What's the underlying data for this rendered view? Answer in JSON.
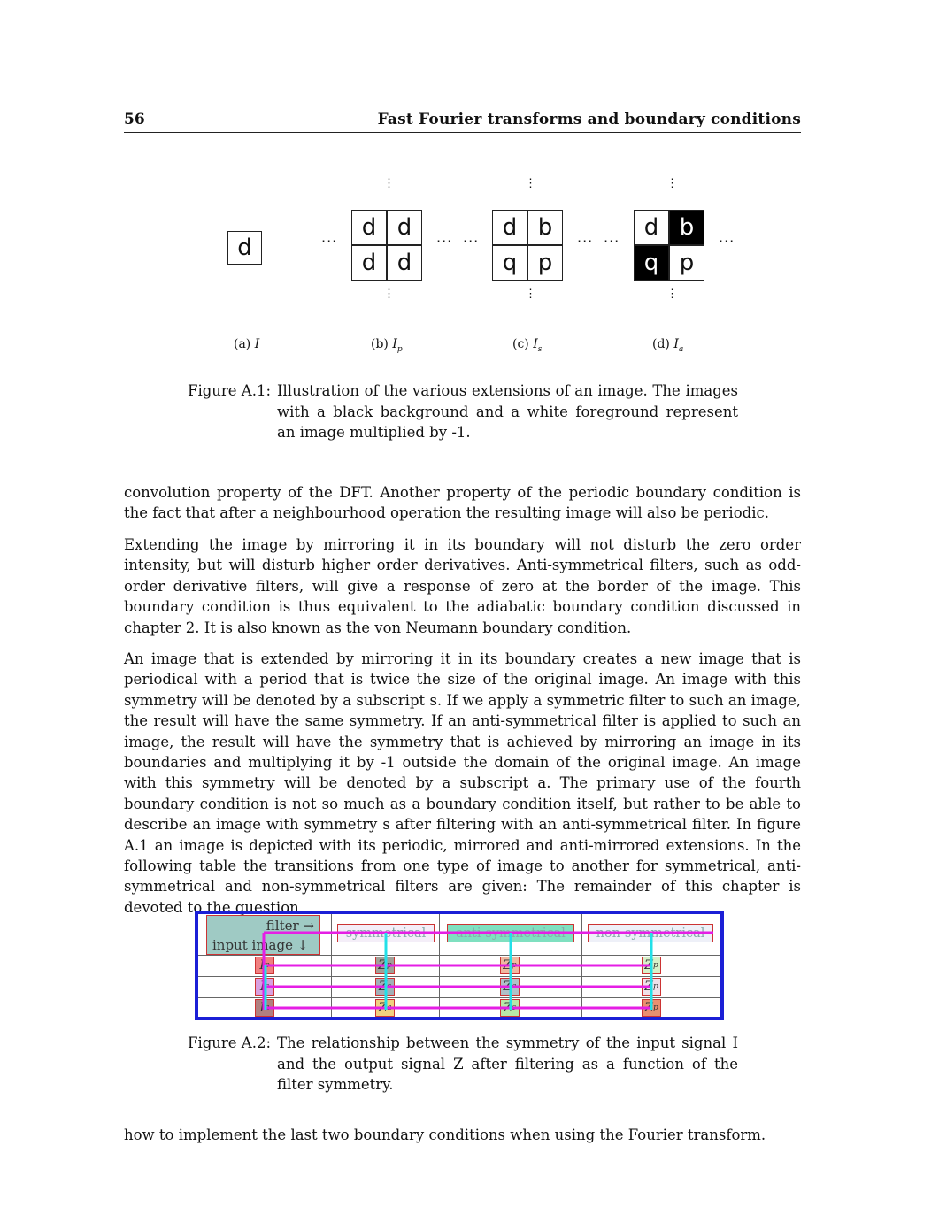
{
  "header": {
    "page_number": "56",
    "running_title": "Fast Fourier transforms and boundary conditions"
  },
  "figure_a1": {
    "subfigures": [
      {
        "label": "(a)",
        "symbol": "I",
        "subscript": "",
        "cells": [
          "d"
        ]
      },
      {
        "label": "(b)",
        "symbol": "I",
        "subscript": "p",
        "cells": [
          "d",
          "d",
          "d",
          "d"
        ]
      },
      {
        "label": "(c)",
        "symbol": "I",
        "subscript": "s",
        "cells": [
          "d",
          "b",
          "q",
          "p"
        ]
      },
      {
        "label": "(d)",
        "symbol": "I",
        "subscript": "a",
        "cells": [
          "d",
          "b",
          "q",
          "p"
        ]
      }
    ],
    "ellipsis_h": "···",
    "ellipsis_v": "⋮",
    "caption_label": "Figure A.1:",
    "caption_text": "Illustration of the various extensions of an image. The images with a black background and a white foreground represent an image multiplied by -1."
  },
  "paragraphs": [
    "convolution property of the DFT. Another property of the periodic boundary condition is the fact that after a neighbourhood operation the resulting image will also be periodic.",
    "Extending the image by mirroring it in its boundary will not disturb the zero order intensity, but will disturb higher order derivatives. Anti-symmetrical filters, such as odd-order derivative filters, will give a response of zero at the border of the image. This boundary condition is thus equivalent to the adiabatic boundary condition discussed in chapter 2. It is also known as the von Neumann boundary condition.",
    "An image that is extended by mirroring it in its boundary creates a new image that is periodical with a period that is twice the size of the original image. An image with this symmetry will be denoted by a subscript s. If we apply a symmetric filter to such an image, the result will have the same symmetry. If an anti-symmetrical filter is applied to such an image, the result will have the symmetry that is achieved by mirroring an image in its boundaries and multiplying it by -1 outside the domain of the original image. An image with this symmetry will be denoted by a subscript a. The primary use of the fourth boundary condition is not so much as a boundary condition itself, but rather to be able to describe an image with symmetry s after filtering with an anti-symmetrical filter. In figure A.1 an image is depicted with its periodic, mirrored and anti-mirrored extensions. In the following table the transitions from one type of image to another for symmetrical, anti-symmetrical and non-symmetrical filters are given: The remainder of this chapter is devoted to the question"
  ],
  "table_a2": {
    "corner_top": "filter →",
    "corner_bottom": "input image ↓",
    "columns": [
      "symmetrical",
      "anti-symmetrical",
      "non-symmetrical"
    ],
    "rows": [
      {
        "input": {
          "s": "I",
          "sub": "p"
        },
        "outputs": [
          {
            "s": "Z",
            "sub": "p"
          },
          {
            "s": "Z",
            "sub": "p"
          },
          {
            "s": "Z",
            "sub": "p"
          }
        ]
      },
      {
        "input": {
          "s": "I",
          "sub": "s"
        },
        "outputs": [
          {
            "s": "Z",
            "sub": "s"
          },
          {
            "s": "Z",
            "sub": "a"
          },
          {
            "s": "Z",
            "sub": "p"
          }
        ]
      },
      {
        "input": {
          "s": "I",
          "sub": "a"
        },
        "outputs": [
          {
            "s": "Z",
            "sub": "a"
          },
          {
            "s": "Z",
            "sub": "s"
          },
          {
            "s": "Z",
            "sub": "p"
          }
        ]
      }
    ],
    "colors": {
      "frame": "#1b1fd6",
      "row_lines": "#e51ee5",
      "col_lines": "#22e0e8",
      "anti_header": "#7fe0c0"
    },
    "caption_label": "Figure A.2:",
    "caption_text": "The relationship between the symmetry of the input signal I and the output signal Z after filtering as a function of the filter symmetry."
  },
  "closing_paragraph": "how to implement the last two boundary conditions when using the Fourier transform."
}
